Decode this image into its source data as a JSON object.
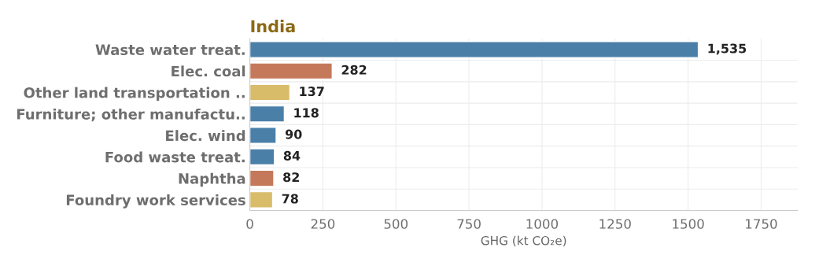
{
  "chart_data": {
    "type": "bar",
    "orientation": "horizontal",
    "title": "India",
    "xlabel": "GHG (kt CO₂e)",
    "categories": [
      "Waste water treat.",
      "Elec. coal",
      "Other land transportation ..",
      "Furniture; other manufactu..",
      "Elec. wind",
      "Food waste treat.",
      "Naphtha",
      "Foundry work services"
    ],
    "values": [
      1535,
      282,
      137,
      118,
      90,
      84,
      82,
      78
    ],
    "colors": [
      "#4a7fa8",
      "#c47a5a",
      "#d9bc6a",
      "#4a7fa8",
      "#4a7fa8",
      "#4a7fa8",
      "#c47a5a",
      "#d9bc6a"
    ],
    "value_labels": [
      "1,535",
      "282",
      "137",
      "118",
      "90",
      "84",
      "82",
      "78"
    ],
    "xlim": [
      0,
      1875
    ],
    "xticks": [
      0,
      250,
      500,
      750,
      1000,
      1250,
      1500,
      1750
    ],
    "grid": true
  }
}
